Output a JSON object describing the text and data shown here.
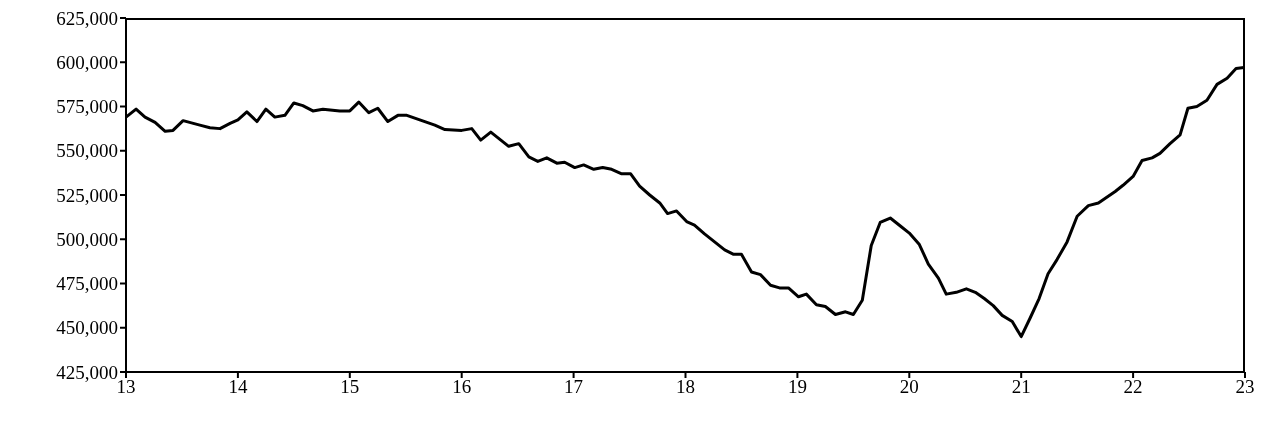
{
  "chart_data": {
    "type": "line",
    "xlim": [
      13,
      23
    ],
    "xticks": [
      13,
      14,
      15,
      16,
      17,
      18,
      19,
      20,
      21,
      22,
      23
    ],
    "ylim": [
      425000,
      625000
    ],
    "yticks": [
      {
        "value": 425000,
        "label": "425,000"
      },
      {
        "value": 450000,
        "label": "450,000"
      },
      {
        "value": 475000,
        "label": "475,000"
      },
      {
        "value": 500000,
        "label": "500,000"
      },
      {
        "value": 525000,
        "label": "525,000"
      },
      {
        "value": 550000,
        "label": "550,000"
      },
      {
        "value": 575000,
        "label": "575,000"
      },
      {
        "value": 600000,
        "label": "600,000"
      },
      {
        "value": 625000,
        "label": "625,000"
      }
    ],
    "grid": false,
    "legend": false,
    "marker": "none",
    "line_style": "solid",
    "x": [
      13.0,
      13.09,
      13.17,
      13.26,
      13.35,
      13.42,
      13.51,
      13.66,
      13.75,
      13.84,
      13.93,
      14.0,
      14.08,
      14.17,
      14.25,
      14.33,
      14.42,
      14.5,
      14.58,
      14.67,
      14.76,
      14.91,
      15.0,
      15.08,
      15.17,
      15.25,
      15.34,
      15.43,
      15.51,
      15.76,
      15.85,
      16.0,
      16.09,
      16.17,
      16.26,
      16.42,
      16.51,
      16.6,
      16.68,
      16.76,
      16.85,
      16.92,
      17.01,
      17.09,
      17.18,
      17.26,
      17.34,
      17.43,
      17.51,
      17.59,
      17.68,
      17.77,
      17.84,
      17.92,
      18.01,
      18.08,
      18.17,
      18.26,
      18.35,
      18.43,
      18.5,
      18.59,
      18.67,
      18.76,
      18.84,
      18.92,
      19.01,
      19.08,
      19.17,
      19.25,
      19.34,
      19.43,
      19.5,
      19.58,
      19.66,
      19.74,
      19.83,
      19.92,
      20.0,
      20.09,
      20.17,
      20.26,
      20.33,
      20.42,
      20.51,
      20.59,
      20.67,
      20.75,
      20.83,
      20.92,
      21.0,
      21.08,
      21.16,
      21.24,
      21.32,
      21.41,
      21.5,
      21.6,
      21.69,
      21.84,
      21.91,
      22.0,
      22.08,
      22.17,
      22.24,
      22.33,
      22.42,
      22.49,
      22.57,
      22.66,
      22.75,
      22.84,
      22.92,
      22.99
    ],
    "series": [
      {
        "color": "#000000",
        "values": [
          569000,
          573500,
          569000,
          566000,
          561000,
          561500,
          567000,
          564500,
          563000,
          562500,
          565500,
          567500,
          572000,
          566500,
          573500,
          569000,
          570000,
          577000,
          575500,
          572500,
          573500,
          572500,
          572500,
          577500,
          571500,
          574000,
          566500,
          570000,
          570000,
          564500,
          562000,
          561500,
          562500,
          556000,
          560500,
          552500,
          554000,
          546500,
          544000,
          546000,
          543000,
          543500,
          540500,
          542000,
          539500,
          540500,
          539500,
          537000,
          537000,
          530000,
          525000,
          520500,
          514500,
          516000,
          510000,
          508000,
          503000,
          498500,
          494000,
          491500,
          491500,
          481500,
          480000,
          474000,
          472500,
          472500,
          467500,
          469000,
          463000,
          462000,
          457500,
          459000,
          457500,
          465500,
          496500,
          509500,
          512000,
          507500,
          503500,
          497000,
          486000,
          478000,
          469000,
          470000,
          472000,
          470000,
          466500,
          462500,
          457000,
          453500,
          445000,
          455500,
          466500,
          480500,
          488500,
          498500,
          513000,
          519000,
          520500,
          527000,
          530500,
          535500,
          544500,
          546000,
          548500,
          554000,
          559000,
          574000,
          575000,
          578500,
          587500,
          591000,
          596500,
          597000
        ]
      }
    ]
  }
}
